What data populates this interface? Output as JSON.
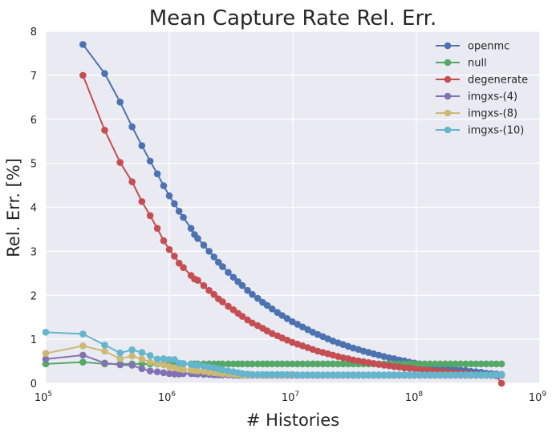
{
  "chart_data": {
    "type": "line",
    "title": "Mean Capture Rate Rel. Err.",
    "xlabel": "# Histories",
    "ylabel": "Rel. Err. [%]",
    "x_scale": "log",
    "xlim": [
      100000,
      1000000000
    ],
    "ylim": [
      0,
      8
    ],
    "x_ticks": [
      {
        "base": "10",
        "exp": "5"
      },
      {
        "base": "10",
        "exp": "6"
      },
      {
        "base": "10",
        "exp": "7"
      },
      {
        "base": "10",
        "exp": "8"
      },
      {
        "base": "10",
        "exp": "9"
      }
    ],
    "y_ticks": [
      "0",
      "1",
      "2",
      "3",
      "4",
      "5",
      "6",
      "7",
      "8"
    ],
    "grid": true,
    "background": "#eaeaf2",
    "legend_position": "top-right",
    "x": [
      100000,
      200000,
      300000,
      400000,
      500000,
      600000,
      700000,
      800000,
      900000,
      1000000,
      1100000,
      1200000,
      1300000,
      1500000,
      1600000,
      1700000,
      1900000,
      2100000,
      2300000,
      2500000,
      2700000,
      3000000,
      3300000,
      3600000,
      3900000,
      4300000,
      4700000,
      5200000,
      5700000,
      6200000,
      6800000,
      7500000,
      8200000,
      9000000,
      9900000,
      10900000,
      12000000,
      13200000,
      14500000,
      15900000,
      17500000,
      19200000,
      21100000,
      23200000,
      25500000,
      28000000,
      30800000,
      33900000,
      37300000,
      41000000,
      45100000,
      49600000,
      54600000,
      60000000,
      66000000,
      72600000,
      79900000,
      87900000,
      96700000,
      106300000,
      117000000,
      128700000,
      141600000,
      155700000,
      171300000,
      188400000,
      207300000,
      228000000,
      250800000,
      275900000,
      303500000,
      333800000,
      367200000,
      403900000,
      444300000,
      488700000
    ],
    "series": [
      {
        "name": "openmc",
        "color": "#4c72b0",
        "values": [
          null,
          7.7,
          7.04,
          6.39,
          5.83,
          5.4,
          5.05,
          4.76,
          4.49,
          4.26,
          4.08,
          3.91,
          3.77,
          3.52,
          3.38,
          3.29,
          3.14,
          3.0,
          2.87,
          2.75,
          2.65,
          2.52,
          2.41,
          2.31,
          2.22,
          2.11,
          2.02,
          1.93,
          1.84,
          1.77,
          1.69,
          1.61,
          1.54,
          1.47,
          1.4,
          1.34,
          1.28,
          1.22,
          1.16,
          1.11,
          1.06,
          1.01,
          0.96,
          0.92,
          0.88,
          0.84,
          0.8,
          0.77,
          0.73,
          0.7,
          0.67,
          0.64,
          0.61,
          0.58,
          0.56,
          0.53,
          0.51,
          0.48,
          0.46,
          0.44,
          0.42,
          0.4,
          0.38,
          0.37,
          0.35,
          0.33,
          0.32,
          0.3,
          0.29,
          0.27,
          0.26,
          0.25,
          0.23,
          0.22,
          0.21,
          0.2
        ]
      },
      {
        "name": "null",
        "color": "#55a868",
        "values": [
          0.44,
          0.48,
          0.44,
          0.44,
          0.44,
          0.44,
          0.44,
          0.44,
          0.44,
          0.44,
          0.44,
          0.44,
          0.44,
          0.44,
          0.44,
          0.44,
          0.44,
          0.44,
          0.44,
          0.44,
          0.44,
          0.44,
          0.44,
          0.44,
          0.44,
          0.44,
          0.44,
          0.44,
          0.44,
          0.44,
          0.44,
          0.44,
          0.44,
          0.44,
          0.44,
          0.44,
          0.44,
          0.44,
          0.44,
          0.44,
          0.44,
          0.44,
          0.44,
          0.44,
          0.44,
          0.44,
          0.44,
          0.44,
          0.44,
          0.44,
          0.44,
          0.44,
          0.44,
          0.44,
          0.44,
          0.44,
          0.44,
          0.44,
          0.44,
          0.44,
          0.44,
          0.44,
          0.44,
          0.44,
          0.44,
          0.44,
          0.44,
          0.44,
          0.44,
          0.44,
          0.44,
          0.44,
          0.44,
          0.44,
          0.44,
          0.44
        ]
      },
      {
        "name": "degenerate",
        "color": "#c44e52",
        "values": [
          null,
          7.0,
          5.75,
          5.02,
          4.58,
          4.13,
          3.81,
          3.52,
          3.24,
          3.04,
          2.89,
          2.73,
          2.63,
          2.45,
          2.37,
          2.34,
          2.22,
          2.11,
          2.02,
          1.92,
          1.85,
          1.75,
          1.67,
          1.59,
          1.52,
          1.44,
          1.37,
          1.31,
          1.25,
          1.19,
          1.13,
          1.08,
          1.03,
          0.98,
          0.93,
          0.89,
          0.85,
          0.81,
          0.77,
          0.73,
          0.7,
          0.67,
          0.64,
          0.61,
          0.58,
          0.56,
          0.53,
          0.51,
          0.49,
          0.47,
          0.45,
          0.43,
          0.41,
          0.4,
          0.38,
          0.37,
          0.35,
          0.34,
          0.33,
          0.31,
          0.3,
          0.29,
          0.28,
          0.27,
          0.26,
          0.25,
          0.24,
          0.23,
          0.22,
          0.21,
          0.2,
          0.19,
          0.19,
          0.18,
          0.17,
          0.0
        ]
      },
      {
        "name": "imgxs-(4)",
        "color": "#8172b2",
        "values": [
          0.55,
          0.64,
          0.46,
          0.42,
          0.41,
          0.33,
          0.28,
          0.26,
          0.24,
          0.22,
          0.21,
          0.21,
          0.22,
          0.22,
          0.22,
          0.21,
          0.2,
          0.2,
          0.19,
          0.19,
          0.19,
          0.19,
          0.18,
          0.18,
          0.18,
          0.18,
          0.18,
          0.18,
          0.18,
          0.18,
          0.18,
          0.18,
          0.18,
          0.18,
          0.18,
          0.18,
          0.18,
          0.18,
          0.18,
          0.18,
          0.18,
          0.18,
          0.18,
          0.18,
          0.18,
          0.18,
          0.18,
          0.18,
          0.18,
          0.18,
          0.18,
          0.18,
          0.18,
          0.18,
          0.18,
          0.18,
          0.18,
          0.18,
          0.18,
          0.18,
          0.18,
          0.18,
          0.18,
          0.18,
          0.18,
          0.18,
          0.18,
          0.18,
          0.18,
          0.18,
          0.18,
          0.18,
          0.18,
          0.18,
          0.18,
          0.18
        ]
      },
      {
        "name": "imgxs-(8)",
        "color": "#ccb974",
        "values": [
          0.68,
          0.85,
          0.73,
          0.56,
          0.62,
          0.55,
          0.48,
          0.45,
          0.42,
          0.38,
          0.35,
          0.33,
          0.31,
          0.3,
          0.29,
          0.28,
          0.27,
          0.25,
          0.24,
          0.23,
          0.22,
          0.21,
          0.2,
          0.2,
          0.19,
          0.19,
          0.19,
          0.19,
          0.19,
          0.19,
          0.19,
          0.19,
          0.19,
          0.19,
          0.19,
          0.19,
          0.19,
          0.19,
          0.19,
          0.19,
          0.19,
          0.19,
          0.19,
          0.19,
          0.19,
          0.19,
          0.19,
          0.19,
          0.19,
          0.19,
          0.19,
          0.19,
          0.19,
          0.19,
          0.19,
          0.19,
          0.19,
          0.19,
          0.19,
          0.19,
          0.19,
          0.19,
          0.19,
          0.19,
          0.19,
          0.19,
          0.19,
          0.19,
          0.19,
          0.19,
          0.19,
          0.19,
          0.19,
          0.19,
          0.19,
          0.19
        ]
      },
      {
        "name": "imgxs-(10)",
        "color": "#64b5cd",
        "values": [
          1.16,
          1.12,
          0.87,
          0.69,
          0.76,
          0.7,
          0.63,
          0.55,
          0.56,
          0.54,
          0.54,
          0.46,
          0.45,
          0.43,
          0.42,
          0.41,
          0.39,
          0.37,
          0.35,
          0.33,
          0.31,
          0.28,
          0.26,
          0.24,
          0.22,
          0.21,
          0.2,
          0.2,
          0.2,
          0.2,
          0.2,
          0.2,
          0.2,
          0.2,
          0.2,
          0.19,
          0.19,
          0.19,
          0.19,
          0.19,
          0.19,
          0.19,
          0.19,
          0.19,
          0.19,
          0.19,
          0.19,
          0.19,
          0.19,
          0.19,
          0.19,
          0.19,
          0.19,
          0.19,
          0.19,
          0.19,
          0.19,
          0.19,
          0.19,
          0.19,
          0.19,
          0.19,
          0.19,
          0.19,
          0.19,
          0.19,
          0.19,
          0.19,
          0.19,
          0.19,
          0.19,
          0.19,
          0.19,
          0.19,
          0.19,
          0.19
        ]
      }
    ]
  }
}
